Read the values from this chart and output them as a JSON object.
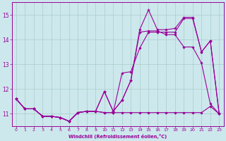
{
  "background_color": "#cce8ec",
  "grid_color": "#aacccc",
  "line_color": "#990099",
  "xlim": [
    -0.5,
    23.5
  ],
  "ylim": [
    10.5,
    15.5
  ],
  "yticks": [
    11,
    12,
    13,
    14,
    15
  ],
  "xticks": [
    0,
    1,
    2,
    3,
    4,
    5,
    6,
    7,
    8,
    9,
    10,
    11,
    12,
    13,
    14,
    15,
    16,
    17,
    18,
    19,
    20,
    21,
    22,
    23
  ],
  "xlabel": "Windchill (Refroidissement éolien,°C)",
  "line1_x": [
    0,
    1,
    2,
    3,
    4,
    5,
    6,
    7,
    8,
    9,
    10,
    11,
    12,
    13,
    14,
    15,
    16,
    17,
    18,
    19,
    20,
    21,
    22,
    23
  ],
  "line1_y": [
    11.6,
    11.2,
    11.2,
    10.9,
    10.9,
    10.85,
    10.7,
    11.05,
    11.1,
    11.1,
    11.05,
    11.05,
    11.05,
    11.05,
    11.05,
    11.05,
    11.05,
    11.05,
    11.05,
    11.05,
    11.05,
    11.05,
    11.3,
    11.0
  ],
  "line2_x": [
    0,
    1,
    2,
    3,
    4,
    5,
    6,
    7,
    8,
    9,
    10,
    11,
    12,
    13,
    14,
    15,
    16,
    17,
    18,
    19,
    20,
    21,
    22,
    23
  ],
  "line2_y": [
    11.6,
    11.2,
    11.2,
    10.9,
    10.9,
    10.85,
    10.7,
    11.05,
    11.1,
    11.1,
    11.9,
    11.1,
    11.55,
    12.35,
    14.3,
    14.35,
    14.35,
    14.2,
    14.2,
    13.7,
    13.7,
    13.05,
    11.4,
    11.0
  ],
  "line3_x": [
    0,
    1,
    2,
    3,
    4,
    5,
    6,
    7,
    8,
    9,
    10,
    11,
    12,
    13,
    14,
    15,
    16,
    17,
    18,
    19,
    20,
    21,
    22,
    23
  ],
  "line3_y": [
    11.6,
    11.2,
    11.2,
    10.9,
    10.9,
    10.85,
    10.7,
    11.05,
    11.1,
    11.1,
    11.05,
    11.05,
    12.65,
    12.7,
    13.65,
    14.3,
    14.3,
    14.3,
    14.3,
    14.85,
    14.85,
    13.5,
    13.95,
    11.0
  ],
  "line4_x": [
    0,
    1,
    2,
    3,
    4,
    5,
    6,
    7,
    8,
    9,
    10,
    11,
    12,
    13,
    14,
    15,
    16,
    17,
    18,
    19,
    20,
    21,
    22,
    23
  ],
  "line4_y": [
    11.6,
    11.2,
    11.2,
    10.9,
    10.9,
    10.85,
    10.7,
    11.05,
    11.1,
    11.1,
    11.9,
    11.1,
    11.55,
    12.35,
    14.4,
    15.2,
    14.4,
    14.4,
    14.45,
    14.9,
    14.9,
    13.5,
    13.95,
    11.0
  ]
}
